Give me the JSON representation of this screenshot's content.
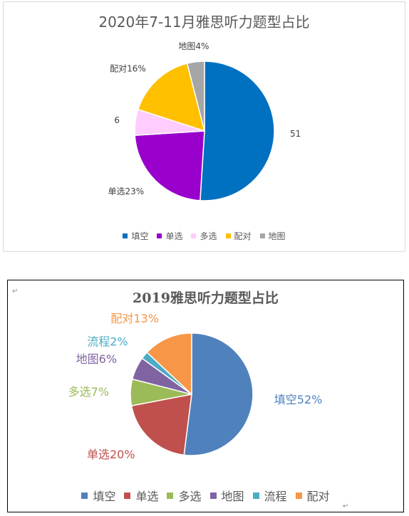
{
  "chart_data": [
    {
      "type": "pie",
      "title": "2020年7-11月雅思听力题型占比",
      "categories": [
        "填空",
        "单选",
        "多选",
        "配对",
        "地图"
      ],
      "values": [
        51,
        23,
        6,
        16,
        4
      ],
      "data_labels": [
        "51",
        "单选23%",
        "6",
        "配对16%",
        "地图4%"
      ],
      "colors": [
        "#0070c0",
        "#9900cc",
        "#ffccff",
        "#ffc000",
        "#a6a6a6"
      ],
      "legend_position": "bottom"
    },
    {
      "type": "pie",
      "title": "2019雅思听力题型占比",
      "categories": [
        "填空",
        "单选",
        "多选",
        "地图",
        "流程",
        "配对"
      ],
      "values": [
        52,
        20,
        7,
        6,
        2,
        13
      ],
      "data_labels": [
        "填空52%",
        "单选20%",
        "多选7%",
        "地图6%",
        "流程2%",
        "配对13%"
      ],
      "colors": [
        "#4f81bd",
        "#c0504d",
        "#9bbb59",
        "#8064a2",
        "#4bacc6",
        "#f79646"
      ],
      "legend_position": "bottom"
    }
  ]
}
